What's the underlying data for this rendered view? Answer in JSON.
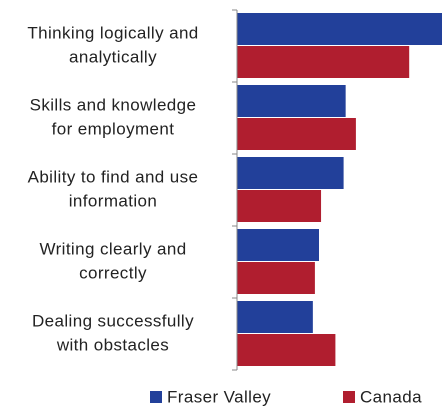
{
  "chart_data": {
    "type": "hbar",
    "categories": [
      [
        "Thinking logically and",
        "analytically"
      ],
      [
        "Skills and knowledge",
        "for employment"
      ],
      [
        "Ability to find and use",
        "information"
      ],
      [
        "Writing clearly and",
        "correctly"
      ],
      [
        "Dealing successfully",
        "with obstacles"
      ]
    ],
    "series": [
      {
        "name": "Fraser Valley",
        "color": "#22409a",
        "values": [
          100,
          53,
          52,
          40,
          37
        ]
      },
      {
        "name": "Canada",
        "color": "#b01e2f",
        "values": [
          84,
          58,
          41,
          38,
          48
        ]
      }
    ],
    "xlim": [
      0,
      100
    ]
  }
}
